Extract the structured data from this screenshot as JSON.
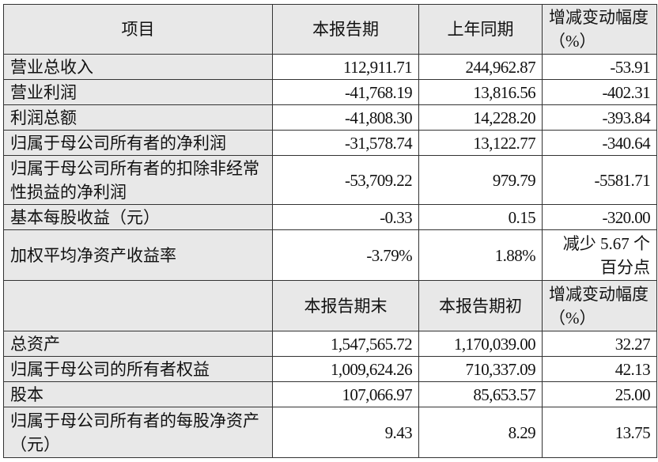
{
  "header1": {
    "item": "项目",
    "current": "本报告期",
    "prior": "上年同期",
    "change": "增减变动幅度（%）"
  },
  "rows1": [
    {
      "label": "营业总收入",
      "current": "112,911.71",
      "prior": "244,962.87",
      "change": "-53.91"
    },
    {
      "label": "营业利润",
      "current": "-41,768.19",
      "prior": "13,816.56",
      "change": "-402.31"
    },
    {
      "label": "利润总额",
      "current": "-41,808.30",
      "prior": "14,228.20",
      "change": "-393.84"
    },
    {
      "label": "归属于母公司所有者的净利润",
      "current": "-31,578.74",
      "prior": "13,122.77",
      "change": "-340.64"
    },
    {
      "label": "归属于母公司所有者的扣除非经常性损益的净利润",
      "current": "-53,709.22",
      "prior": "979.79",
      "change": "-5581.71"
    },
    {
      "label": "基本每股收益（元）",
      "current": "-0.33",
      "prior": "0.15",
      "change": "-320.00"
    },
    {
      "label": "加权平均净资产收益率",
      "current": "-3.79%",
      "prior": "1.88%",
      "change": "减少 5.67 个百分点"
    }
  ],
  "header2": {
    "item": "",
    "end": "本报告期末",
    "begin": "本报告期初",
    "change": "增减变动幅度（%）"
  },
  "rows2": [
    {
      "label": "总资产",
      "end": "1,547,565.72",
      "begin": "1,170,039.00",
      "change": "32.27"
    },
    {
      "label": "归属于母公司的所有者权益",
      "end": "1,009,624.26",
      "begin": "710,337.09",
      "change": "42.13"
    },
    {
      "label": "股本",
      "end": "107,066.97",
      "begin": "85,653.57",
      "change": "25.00"
    },
    {
      "label": "归属于母公司所有者的每股净资产（元）",
      "end": "9.43",
      "begin": "8.29",
      "change": "13.75"
    }
  ]
}
